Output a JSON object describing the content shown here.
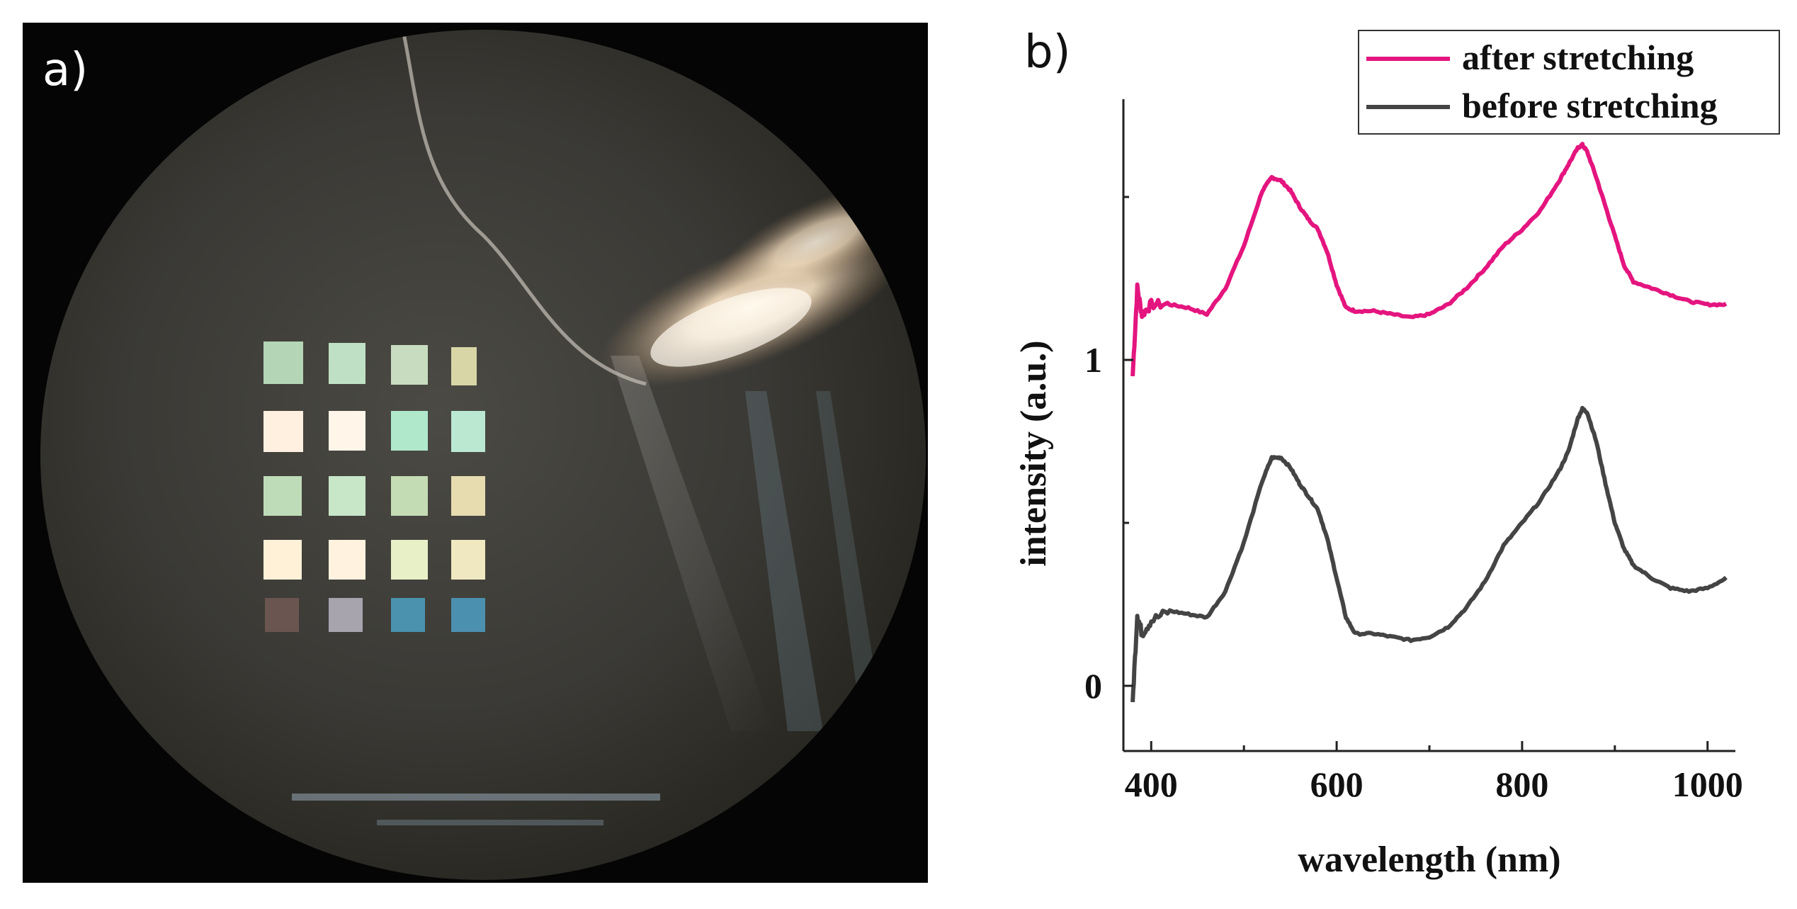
{
  "figure": {
    "panels": [
      {
        "label": "a)",
        "description_type": "microscope photograph",
        "array_rows": 5,
        "array_cols": 4
      },
      {
        "label": "b)"
      }
    ]
  },
  "chart_data": {
    "type": "line",
    "title": "",
    "xlabel": "wavelength (nm)",
    "ylabel": "intensity (a.u.)",
    "xlim": [
      370,
      1030
    ],
    "ylim": [
      -0.2,
      1.8
    ],
    "xticks": [
      400,
      600,
      800,
      1000
    ],
    "yticks": [
      0,
      1
    ],
    "xtick_labels": [
      "400",
      "600",
      "800",
      "1000"
    ],
    "ytick_labels": [
      "0",
      "1"
    ],
    "legend_position": "top-right",
    "colors": {
      "after": "#e4157f",
      "before": "#444444"
    },
    "series": [
      {
        "name": "after stretching",
        "color": "#e4157f",
        "x": [
          380,
          385,
          390,
          400,
          420,
          440,
          460,
          480,
          500,
          520,
          530,
          540,
          550,
          560,
          570,
          580,
          590,
          600,
          610,
          620,
          640,
          660,
          680,
          700,
          720,
          740,
          760,
          780,
          800,
          820,
          840,
          850,
          860,
          865,
          870,
          880,
          890,
          900,
          910,
          920,
          940,
          960,
          980,
          1000,
          1020
        ],
        "values": [
          0.95,
          1.22,
          1.14,
          1.17,
          1.17,
          1.16,
          1.14,
          1.22,
          1.35,
          1.52,
          1.56,
          1.55,
          1.52,
          1.47,
          1.43,
          1.4,
          1.33,
          1.23,
          1.16,
          1.15,
          1.15,
          1.14,
          1.13,
          1.14,
          1.17,
          1.22,
          1.28,
          1.35,
          1.4,
          1.46,
          1.55,
          1.6,
          1.65,
          1.66,
          1.64,
          1.56,
          1.47,
          1.38,
          1.29,
          1.24,
          1.22,
          1.2,
          1.18,
          1.17,
          1.17
        ]
      },
      {
        "name": "before stretching",
        "color": "#444444",
        "x": [
          380,
          385,
          390,
          400,
          420,
          440,
          460,
          480,
          500,
          520,
          530,
          540,
          550,
          560,
          570,
          580,
          590,
          600,
          610,
          620,
          640,
          660,
          680,
          700,
          720,
          740,
          760,
          780,
          800,
          820,
          840,
          850,
          860,
          865,
          870,
          880,
          890,
          900,
          910,
          920,
          940,
          960,
          980,
          1000,
          1020
        ],
        "values": [
          -0.05,
          0.22,
          0.16,
          0.2,
          0.23,
          0.22,
          0.21,
          0.29,
          0.44,
          0.63,
          0.7,
          0.7,
          0.67,
          0.62,
          0.58,
          0.54,
          0.45,
          0.33,
          0.21,
          0.16,
          0.16,
          0.15,
          0.14,
          0.15,
          0.18,
          0.24,
          0.32,
          0.43,
          0.5,
          0.57,
          0.66,
          0.72,
          0.82,
          0.85,
          0.84,
          0.75,
          0.62,
          0.5,
          0.42,
          0.37,
          0.33,
          0.3,
          0.29,
          0.3,
          0.33
        ]
      }
    ]
  }
}
